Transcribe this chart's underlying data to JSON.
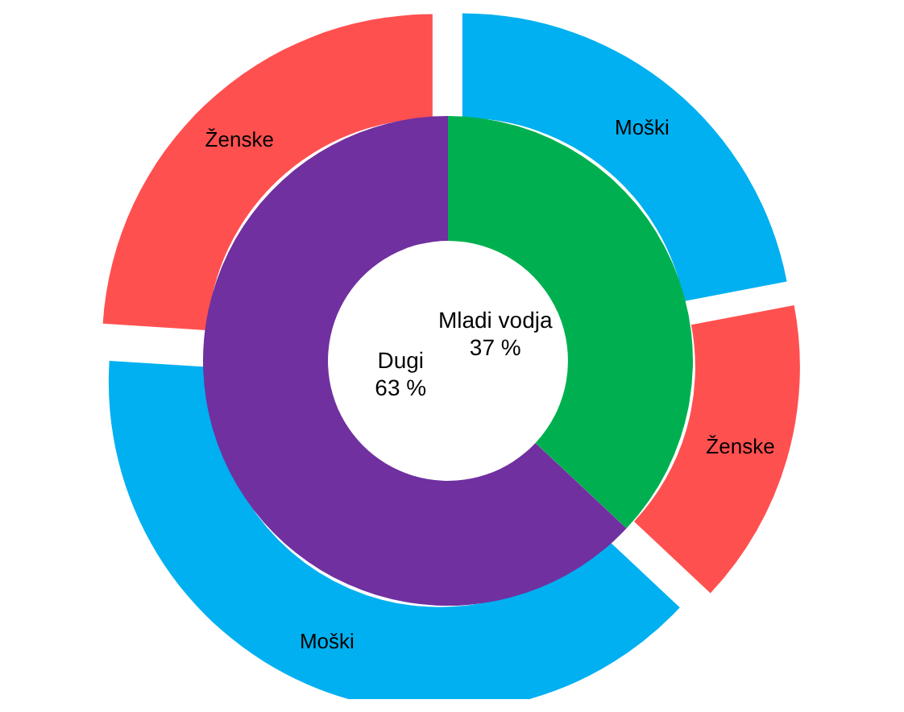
{
  "chart_data": [
    {
      "type": "donut",
      "categories": [
        "Mladi vodja",
        "Dugi"
      ],
      "values": [
        37,
        63
      ],
      "colors": [
        "#00b050",
        "#7030a0"
      ],
      "value_labels": [
        "37 %",
        "63 %"
      ]
    },
    {
      "type": "donut",
      "categories": [
        "Moški",
        "Ženske",
        "Moški",
        "Ženske"
      ],
      "values": [
        22,
        15,
        39,
        24
      ],
      "colors": [
        "#00b0f0",
        "#ff5050",
        "#00b0f0",
        "#ff5050"
      ]
    }
  ]
}
